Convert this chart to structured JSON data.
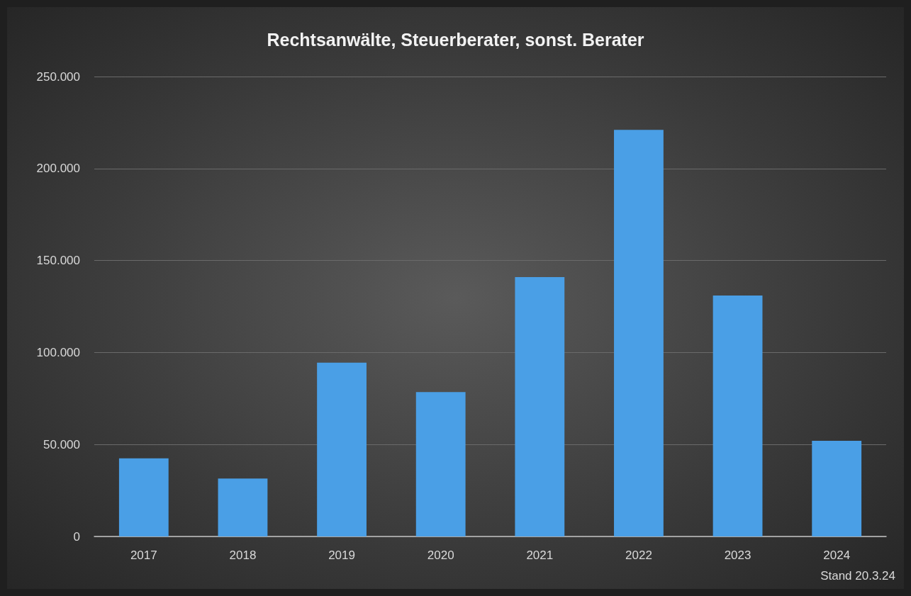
{
  "chart_data": {
    "type": "bar",
    "title": "Rechtsanwälte, Steuerberater, sonst. Berater",
    "categories": [
      "2017",
      "2018",
      "2019",
      "2020",
      "2021",
      "2022",
      "2023",
      "2024"
    ],
    "values": [
      42500,
      31500,
      94500,
      78500,
      141000,
      221000,
      131000,
      52000
    ],
    "color": "#4a9fe6",
    "ylim": [
      0,
      250000
    ],
    "yticks": [
      {
        "value": 0,
        "label": "0"
      },
      {
        "value": 50000,
        "label": "50.000"
      },
      {
        "value": 100000,
        "label": "100.000"
      },
      {
        "value": 150000,
        "label": "150.000"
      },
      {
        "value": 200000,
        "label": "200.000"
      },
      {
        "value": 250000,
        "label": "250.000"
      }
    ],
    "grid": "y",
    "annotations": [
      "Stand 20.3.24"
    ]
  }
}
